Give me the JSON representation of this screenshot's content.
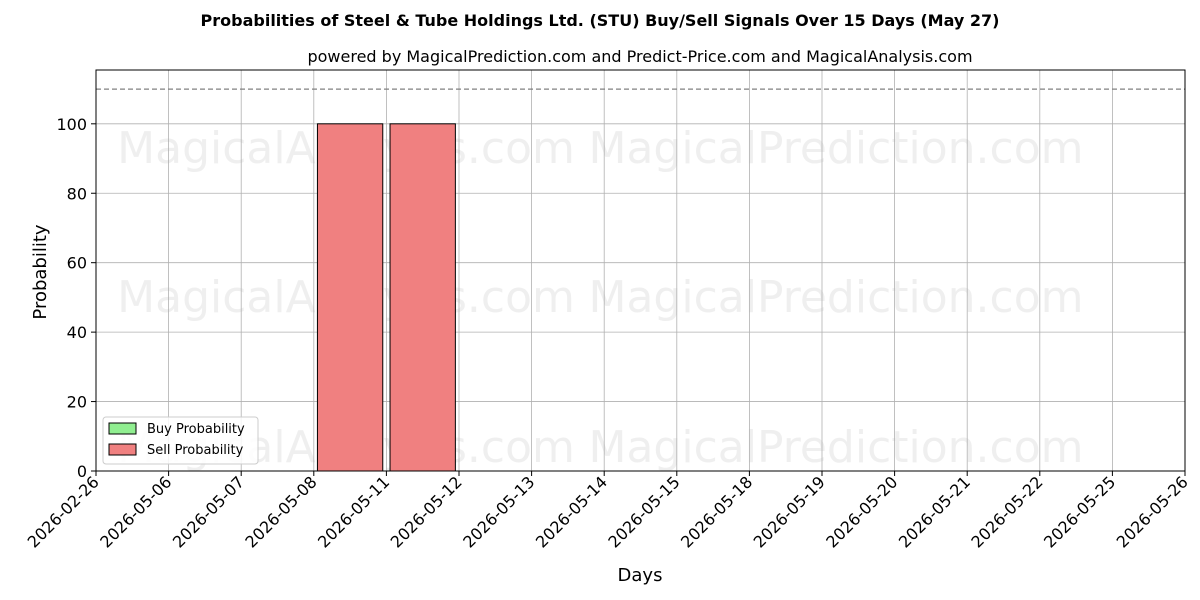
{
  "chart_data": {
    "type": "bar",
    "title": "Probabilities of Steel & Tube Holdings Ltd. (STU) Buy/Sell Signals Over 15 Days (May 27)",
    "subtitle": "powered by MagicalPrediction.com and Predict-Price.com and MagicalAnalysis.com",
    "xlabel": "Days",
    "ylabel": "Probability",
    "ylim": [
      0,
      115.5
    ],
    "yticks": [
      0,
      20,
      40,
      60,
      80,
      100
    ],
    "categories": [
      "2026-02-26",
      "2026-05-06",
      "2026-05-07",
      "2026-05-08",
      "2026-05-11",
      "2026-05-12",
      "2026-05-13",
      "2026-05-14",
      "2026-05-15",
      "2026-05-18",
      "2026-05-19",
      "2026-05-20",
      "2026-05-21",
      "2026-05-22",
      "2026-05-25",
      "2026-05-26"
    ],
    "series": [
      {
        "name": "Buy Probability",
        "color": "#90ee90",
        "values": [
          0,
          0,
          0,
          0,
          0,
          0,
          0,
          0,
          0,
          0,
          0,
          0,
          0,
          0,
          0,
          0
        ]
      },
      {
        "name": "Sell Probability",
        "color": "#f08080",
        "values": [
          0,
          0,
          0,
          0,
          100,
          100,
          0,
          0,
          0,
          0,
          0,
          0,
          0,
          0,
          0,
          0
        ]
      }
    ],
    "reference_line": 110,
    "grid": true,
    "legend_position": "bottom-left",
    "watermarks": [
      "MagicalAnalysis.com",
      "MagicalPrediction.com",
      "MagicalAnalysis.com",
      "MagicalPrediction.com",
      "MagicalAnalysis.com",
      "MagicalPrediction.com"
    ]
  }
}
